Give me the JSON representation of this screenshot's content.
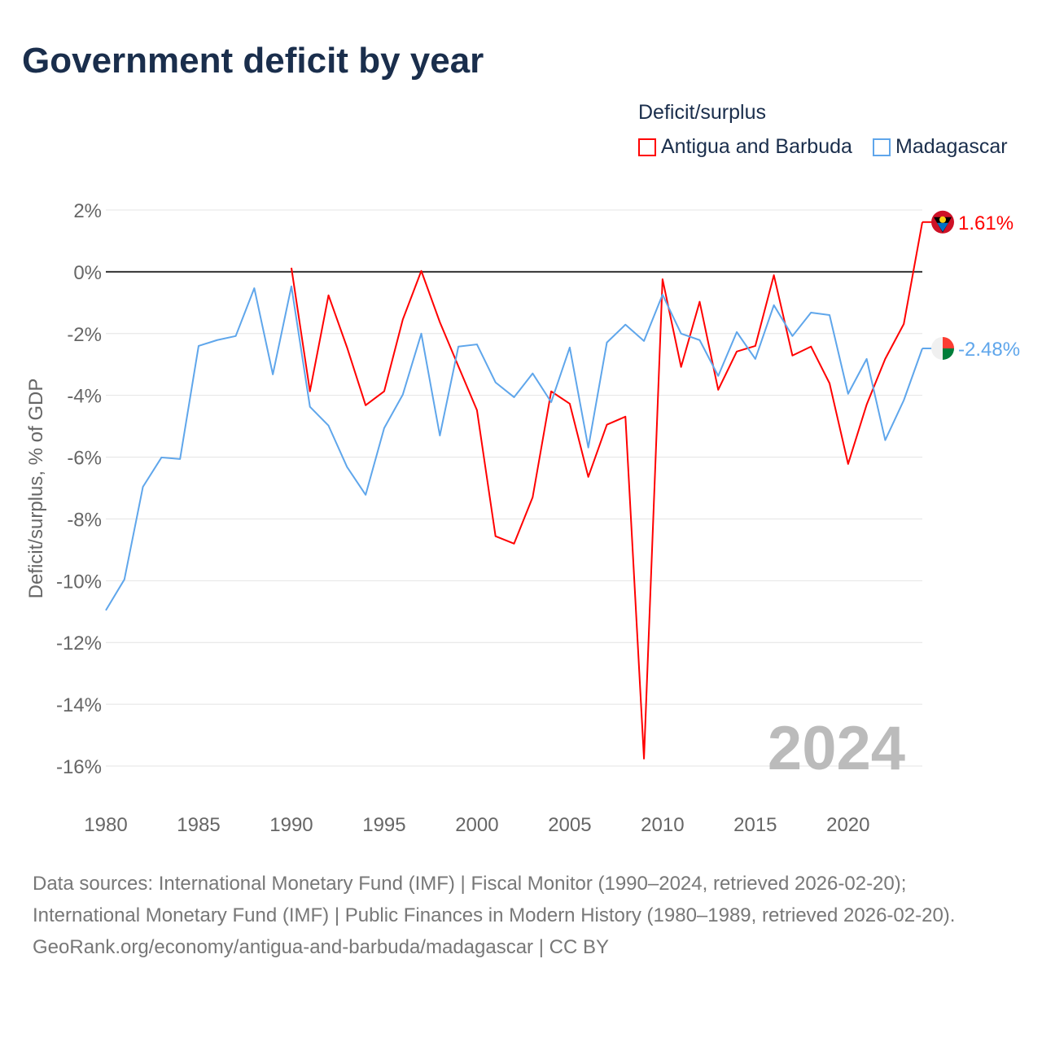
{
  "title": "Government deficit by year",
  "legend": {
    "title": "Deficit/surplus",
    "items": [
      {
        "label": "Antigua and Barbuda",
        "color": "#ff0000"
      },
      {
        "label": "Madagascar",
        "color": "#5fa6eb"
      }
    ]
  },
  "chart_data": {
    "type": "line",
    "title": "Government deficit by year",
    "ylabel": "Deficit/surplus, % of GDP",
    "xlabel": "",
    "ylim": [
      -16,
      2
    ],
    "xlim": [
      1980,
      2024
    ],
    "yticks": [
      2,
      0,
      -2,
      -4,
      -6,
      -8,
      -10,
      -12,
      -14,
      -16
    ],
    "ytick_labels": [
      "2%",
      "0%",
      "-2%",
      "-4%",
      "-6%",
      "-8%",
      "-10%",
      "-12%",
      "-14%",
      "-16%"
    ],
    "xticks": [
      1980,
      1985,
      1990,
      1995,
      2000,
      2005,
      2010,
      2015,
      2020
    ],
    "xtick_labels": [
      "1980",
      "1985",
      "1990",
      "1995",
      "2000",
      "2005",
      "2010",
      "2015",
      "2020"
    ],
    "year_watermark": "2024",
    "series": [
      {
        "name": "Antigua and Barbuda",
        "color": "#ff0000",
        "end_label": "1.61%",
        "x": [
          1990,
          1991,
          1992,
          1993,
          1994,
          1995,
          1996,
          1997,
          1998,
          1999,
          2000,
          2001,
          2002,
          2003,
          2004,
          2005,
          2006,
          2007,
          2008,
          2009,
          2010,
          2011,
          2012,
          2013,
          2014,
          2015,
          2016,
          2017,
          2018,
          2019,
          2020,
          2021,
          2022,
          2023,
          2024
        ],
        "values": [
          0.13,
          -3.87,
          -0.76,
          -2.45,
          -4.32,
          -3.87,
          -1.55,
          0.03,
          -1.63,
          -3.06,
          -4.48,
          -8.56,
          -8.8,
          -7.3,
          -3.87,
          -4.27,
          -6.64,
          -4.95,
          -4.69,
          -15.76,
          -0.24,
          -3.08,
          -0.97,
          -3.82,
          -2.58,
          -2.4,
          -0.11,
          -2.71,
          -2.42,
          -3.61,
          -6.22,
          -4.3,
          -2.82,
          -1.69,
          1.61
        ]
      },
      {
        "name": "Madagascar",
        "color": "#5fa6eb",
        "end_label": "-2.48%",
        "x": [
          1980,
          1981,
          1982,
          1983,
          1984,
          1985,
          1986,
          1987,
          1988,
          1989,
          1990,
          1991,
          1992,
          1993,
          1994,
          1995,
          1996,
          1997,
          1998,
          1999,
          2000,
          2001,
          2002,
          2003,
          2004,
          2005,
          2006,
          2007,
          2008,
          2009,
          2010,
          2011,
          2012,
          2013,
          2014,
          2015,
          2016,
          2017,
          2018,
          2019,
          2020,
          2021,
          2022,
          2023,
          2024
        ],
        "values": [
          -10.96,
          -9.96,
          -6.96,
          -6.01,
          -6.06,
          -2.4,
          -2.21,
          -2.08,
          -0.53,
          -3.32,
          -0.47,
          -4.37,
          -4.98,
          -6.32,
          -7.22,
          -5.06,
          -3.98,
          -2.0,
          -5.3,
          -2.42,
          -2.35,
          -3.58,
          -4.06,
          -3.29,
          -4.22,
          -2.45,
          -5.69,
          -2.29,
          -1.71,
          -2.24,
          -0.74,
          -2.0,
          -2.21,
          -3.37,
          -1.95,
          -2.82,
          -1.08,
          -2.08,
          -1.32,
          -1.4,
          -3.95,
          -2.82,
          -5.45,
          -4.16,
          -2.48
        ]
      }
    ]
  },
  "footer": {
    "sources": "Data sources: International Monetary Fund (IMF) | Fiscal Monitor (1990–2024, retrieved 2026-02-20); International Monetary Fund (IMF) | Public Finances in Modern History (1980–1989, retrieved 2026-02-20).",
    "link": "GeoRank.org/economy/antigua-and-barbuda/madagascar | CC BY"
  }
}
